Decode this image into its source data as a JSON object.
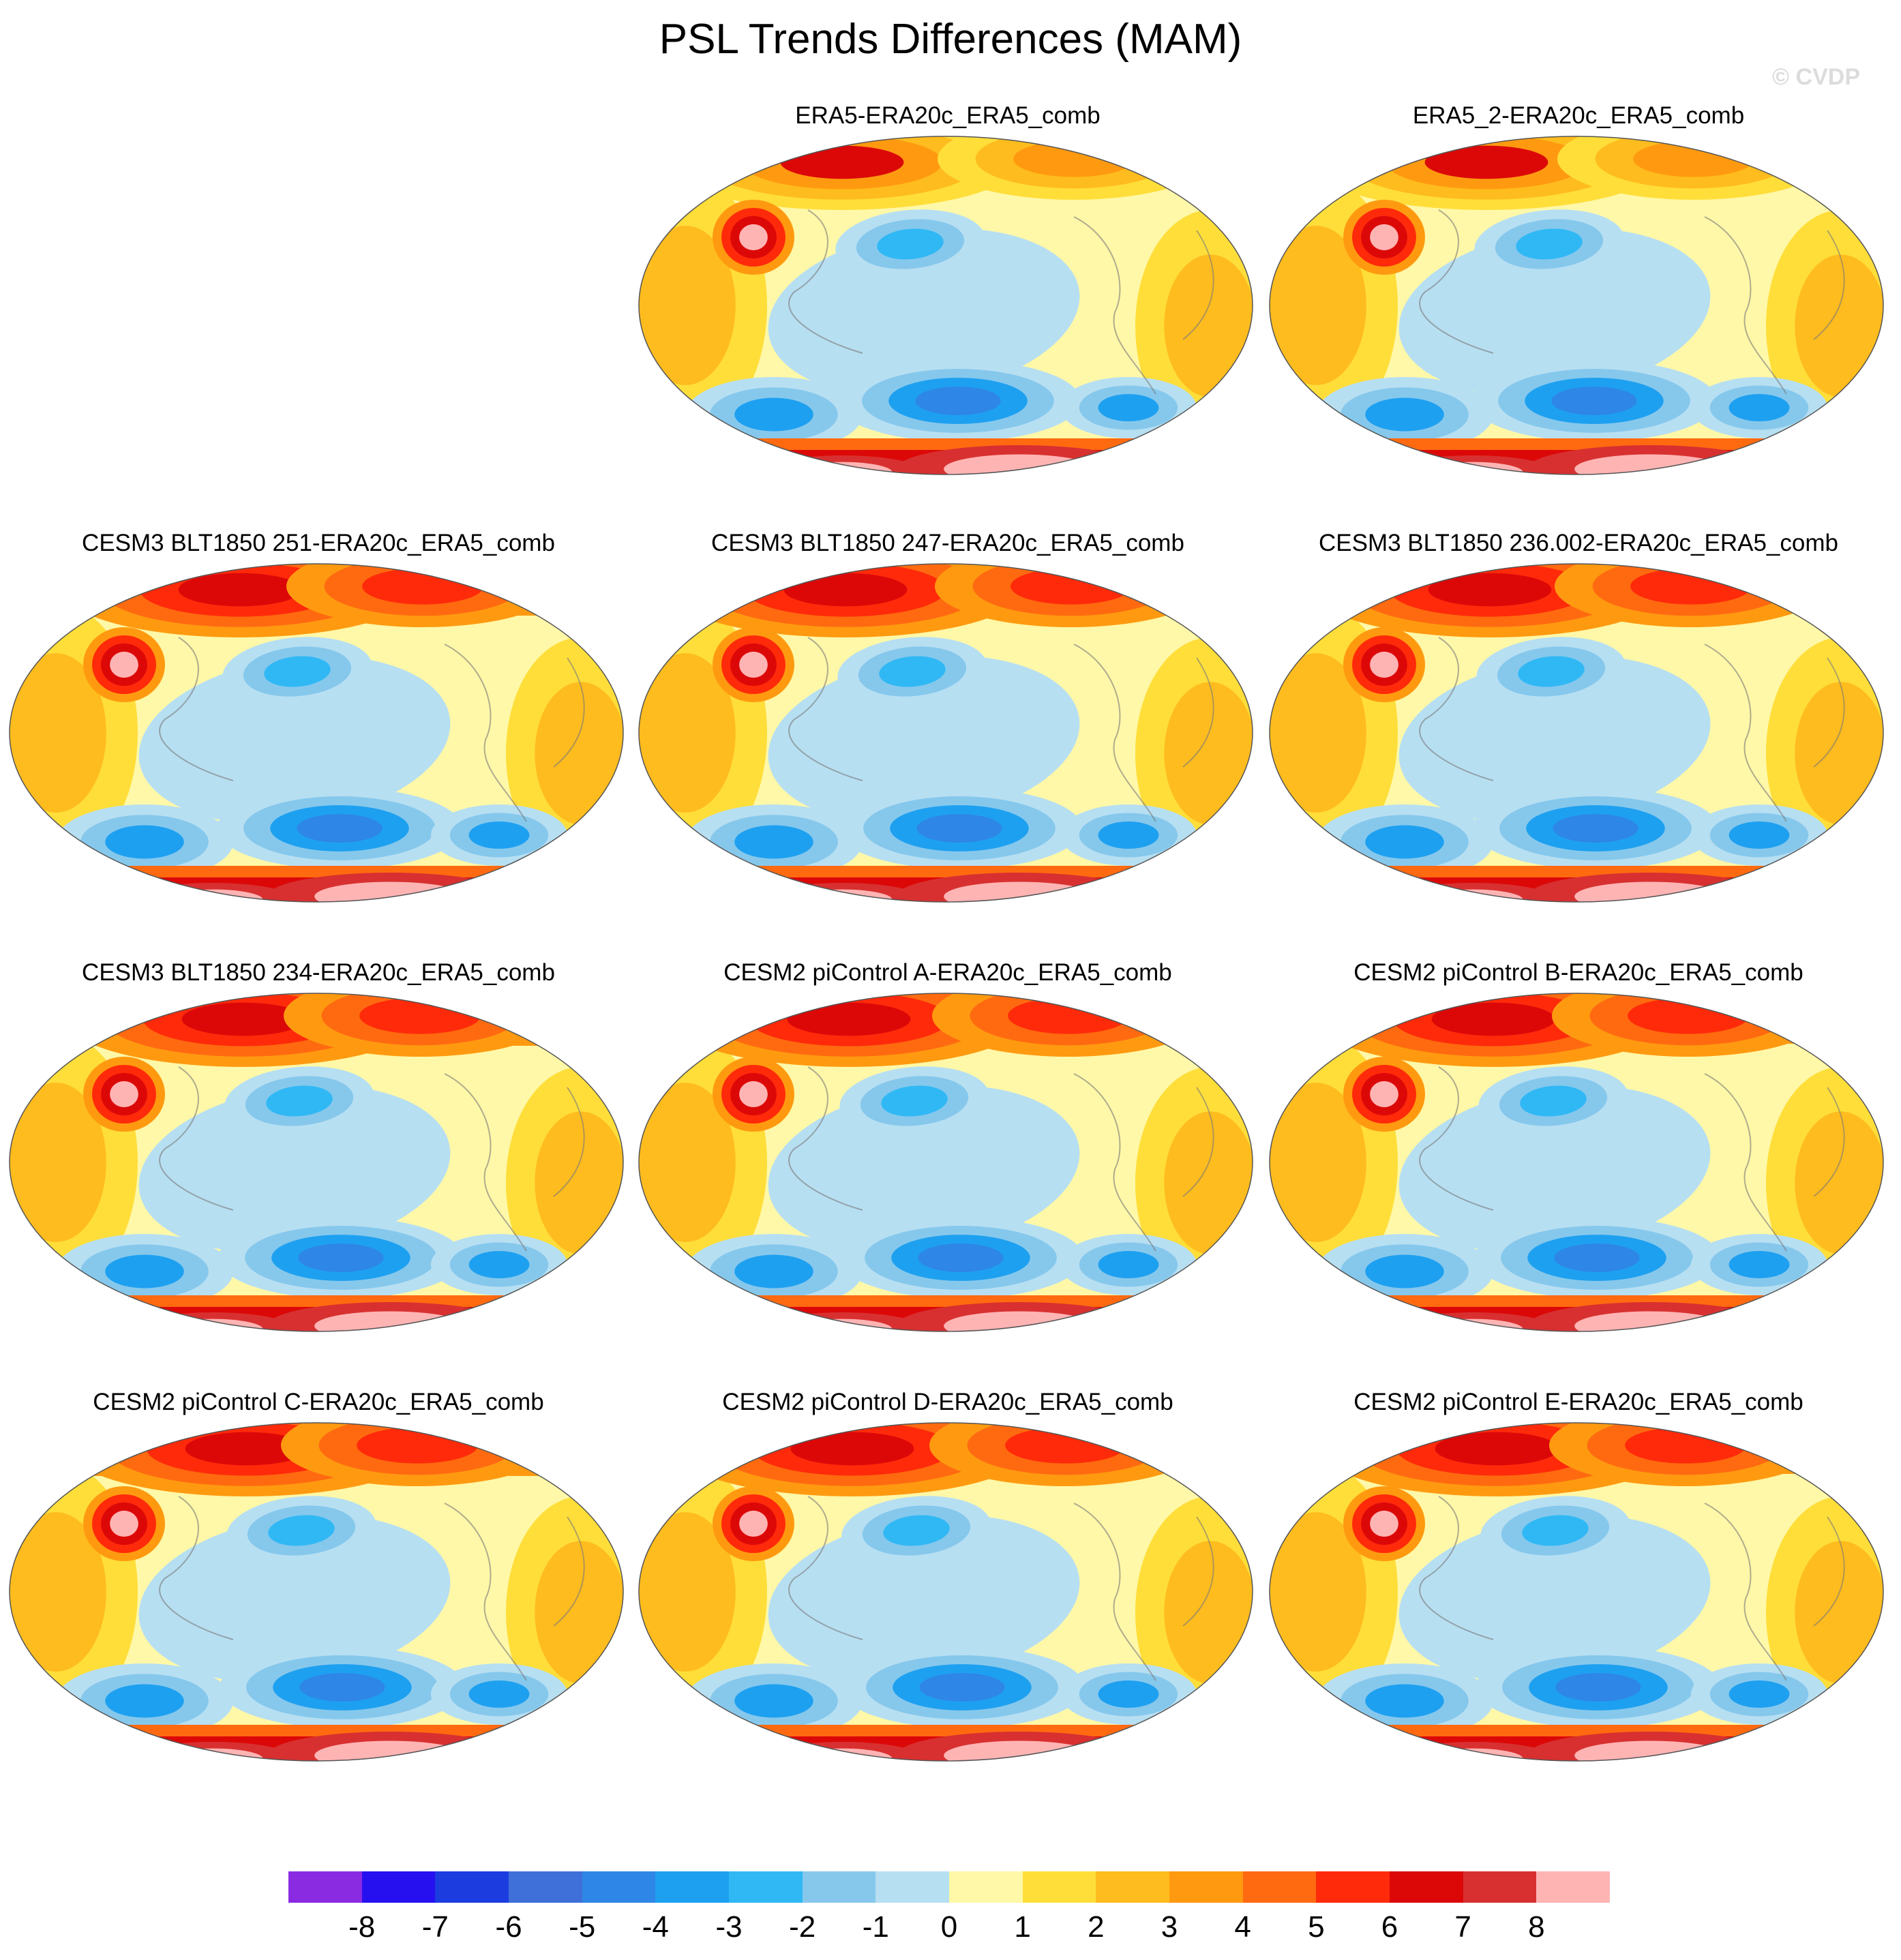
{
  "title": "PSL Trends Differences (MAM)",
  "watermark": "© CVDP",
  "palette": [
    "#8a2be2",
    "#2710f0",
    "#1c3ce0",
    "#3f6fd8",
    "#2e86e6",
    "#1ea0f0",
    "#30b8f5",
    "#86c8ec",
    "#b7dff2",
    "#fff8a8",
    "#ffde3a",
    "#ffbc1e",
    "#ff9a10",
    "#ff6a10",
    "#ff2a0a",
    "#dc0808",
    "#d83030",
    "#ffb4b4"
  ],
  "colorbar": {
    "labels": [
      "-8",
      "-7",
      "-6",
      "-5",
      "-4",
      "-3",
      "-2",
      "-1",
      "0",
      "1",
      "2",
      "3",
      "4",
      "5",
      "6",
      "7",
      "8"
    ]
  },
  "panels": [
    {
      "title": "ERA5-ERA20c_ERA5_comb",
      "pattern": "reanalysis"
    },
    {
      "title": "ERA5_2-ERA20c_ERA5_comb",
      "pattern": "reanalysis"
    },
    {
      "title": "CESM3 BLT1850 251-ERA20c_ERA5_comb",
      "pattern": "model"
    },
    {
      "title": "CESM3 BLT1850 247-ERA20c_ERA5_comb",
      "pattern": "model"
    },
    {
      "title": "CESM3 BLT1850 236.002-ERA20c_ERA5_comb",
      "pattern": "model"
    },
    {
      "title": "CESM3 BLT1850 234-ERA20c_ERA5_comb",
      "pattern": "model"
    },
    {
      "title": "CESM2 piControl A-ERA20c_ERA5_comb",
      "pattern": "model"
    },
    {
      "title": "CESM2 piControl B-ERA20c_ERA5_comb",
      "pattern": "model"
    },
    {
      "title": "CESM2 piControl C-ERA20c_ERA5_comb",
      "pattern": "model"
    },
    {
      "title": "CESM2 piControl D-ERA20c_ERA5_comb",
      "pattern": "model"
    },
    {
      "title": "CESM2 piControl E-ERA20c_ERA5_comb",
      "pattern": "model"
    }
  ]
}
